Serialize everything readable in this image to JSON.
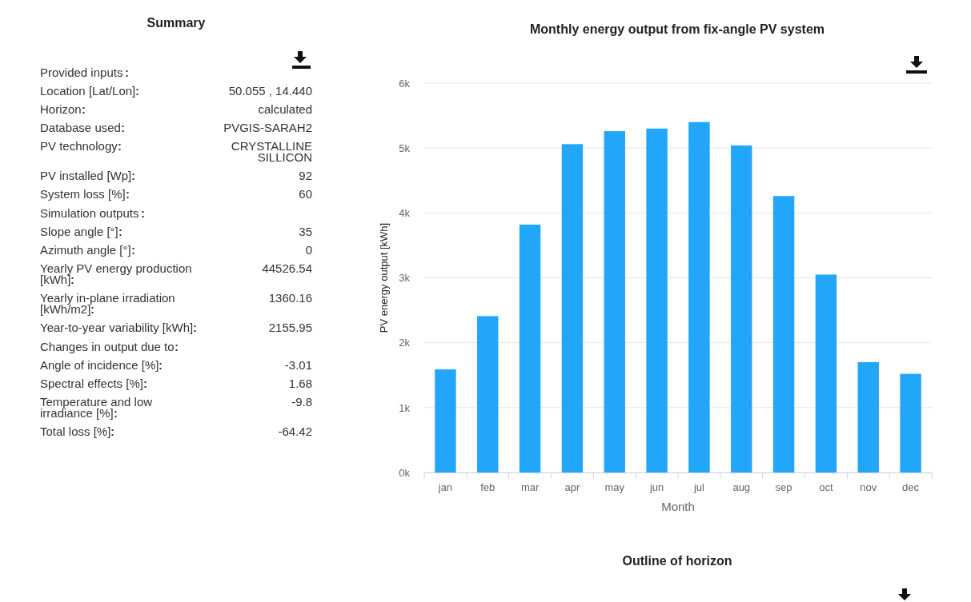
{
  "chart_data": [
    {
      "type": "other",
      "title": "Summary",
      "categories": [
        "Provided inputs",
        "Location [Lat/Lon]",
        "Horizon",
        "Database used",
        "PV technology",
        "PV installed [Wp]",
        "System loss [%]",
        "Simulation outputs",
        "Slope angle [°]",
        "Azimuth angle [°]",
        "Yearly PV energy production [kWh]",
        "Yearly in-plane irradiation [kWh/m2]",
        "Year-to-year variability [kWh]",
        "Changes in output due to",
        "Angle of incidence [%]",
        "Spectral effects [%]",
        "Temperature and low irradiance [%]",
        "Total loss [%]"
      ],
      "value_labels": [
        null,
        "50.055 , 14.440",
        "calculated",
        "PVGIS-SARAH2",
        "CRYSTALLINE SILLICON",
        "92",
        "60",
        null,
        "35",
        "0",
        "44526.54",
        "1360.16",
        "2155.95",
        null,
        "-3.01",
        "1.68",
        "-9.8",
        "-64.42"
      ]
    },
    {
      "type": "bar",
      "title": "Monthly energy output from fix-angle PV system",
      "xlabel": "Month",
      "ylabel": "PV energy output [kWh]",
      "categories": [
        "jan",
        "feb",
        "mar",
        "apr",
        "may",
        "jun",
        "jul",
        "aug",
        "sep",
        "oct",
        "nov",
        "dec"
      ],
      "values": [
        1590,
        2410,
        3820,
        5060,
        5260,
        5300,
        5400,
        5040,
        4260,
        3050,
        1700,
        1520
      ],
      "color": "#22a6f9",
      "ylim": [
        0,
        6000
      ],
      "yticks": [
        {
          "value": 0,
          "label": "0k"
        },
        {
          "value": 1000,
          "label": "1k"
        },
        {
          "value": 2000,
          "label": "2k"
        },
        {
          "value": 3000,
          "label": "3k"
        },
        {
          "value": 4000,
          "label": "4k"
        },
        {
          "value": 5000,
          "label": "5k"
        },
        {
          "value": 6000,
          "label": "6k"
        }
      ],
      "grid": "y"
    },
    {
      "type": "other",
      "title": "Outline of horizon"
    }
  ]
}
